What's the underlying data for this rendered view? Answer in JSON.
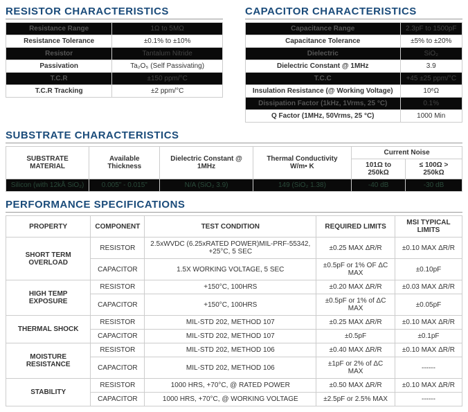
{
  "resistor": {
    "title": "RESISTOR CHARACTERISTICS",
    "rows": [
      {
        "label": "Resistance Range",
        "value": "1Ω to 5MΩ",
        "dark": true
      },
      {
        "label": "Resistance Tolerance",
        "value": "±0.1% to ±10%",
        "dark": false
      },
      {
        "label": "Resistor",
        "value": "Tantalum Nitride",
        "dark": true
      },
      {
        "label": "Passivation",
        "value": "Ta₂O₅ (Self Passivating)",
        "dark": false
      },
      {
        "label": "T.C.R",
        "value": "±150 ppm/°C",
        "dark": true
      },
      {
        "label": "T.C.R Tracking",
        "value": "±2 ppm/°C",
        "dark": false
      }
    ]
  },
  "capacitor": {
    "title": "CAPACITOR CHARACTERISTICS",
    "rows": [
      {
        "label": "Capacitance Range",
        "value": "2.3pF to 1500pF",
        "dark": true
      },
      {
        "label": "Capacitance Tolerance",
        "value": "±5% to ±20%",
        "dark": false
      },
      {
        "label": "Dielectric",
        "value": "SiO₂",
        "dark": true
      },
      {
        "label": "Dielectric Constant @ 1MHz",
        "value": "3.9",
        "dark": false
      },
      {
        "label": "T.C.C",
        "value": "+45 ±25 ppm/°C",
        "dark": true
      },
      {
        "label": "Insulation Resistance (@ Working Voltage)",
        "value": "10⁶Ω",
        "dark": false
      },
      {
        "label": "Dissipation Factor (1kHz, 1Vrms, 25 °C)",
        "value": "0.1%",
        "dark": true
      },
      {
        "label": "Q Factor (1MHz, 50Vrms, 25 °C)",
        "value": "1000 Min",
        "dark": false
      }
    ]
  },
  "substrate": {
    "title": "SUBSTRATE CHARACTERISTICS",
    "headers": {
      "material": "SUBSTRATE MATERIAL",
      "thickness": "Available Thickness",
      "dielectric": "Dielectric Constant @ 1MHz",
      "thermal": "Thermal Conductivity W/m• K",
      "noise": "Current Noise",
      "noise_a": "101Ω to 250kΩ",
      "noise_b": "≤ 100Ω >  250kΩ"
    },
    "data": {
      "material": "Silicon (with 12kÅ SiO₂)",
      "thickness": "0.005\" - 0.015\"",
      "dielectric": "N/A (SiO₂ 3.9)",
      "thermal": "149 (SiO₂ 1.38)",
      "noise_a": "-40 dB",
      "noise_b": "-30 dB"
    }
  },
  "performance": {
    "title": "PERFORMANCE SPECIFICATIONS",
    "headers": {
      "property": "PROPERTY",
      "component": "COMPONENT",
      "test": "TEST CONDITION",
      "required": "REQUIRED LIMITS",
      "typical": "MSI TYPICAL LIMITS"
    },
    "groups": [
      {
        "property": "SHORT TERM OVERLOAD",
        "rows": [
          {
            "component": "RESISTOR",
            "test": "2.5xWVDC (6.25xRATED POWER)MIL-PRF-55342, +25°C, 5 SEC",
            "required": "±0.25 MAX ΔR/R",
            "typical": "±0.10 MAX ΔR/R"
          },
          {
            "component": "CAPACITOR",
            "test": "1.5X WORKING VOLTAGE, 5 SEC",
            "required": "±0.5pF or 1% OF ΔC MAX",
            "typical": "±0.10pF"
          }
        ]
      },
      {
        "property": "HIGH TEMP EXPOSURE",
        "rows": [
          {
            "component": "RESISTOR",
            "test": "+150°C, 100HRS",
            "required": "±0.20 MAX ΔR/R",
            "typical": "±0.03 MAX ΔR/R"
          },
          {
            "component": "CAPACITOR",
            "test": "+150°C, 100HRS",
            "required": "±0.5pF or 1% of ΔC MAX",
            "typical": "±0.05pF"
          }
        ]
      },
      {
        "property": "THERMAL SHOCK",
        "rows": [
          {
            "component": "RESISTOR",
            "test": "MIL-STD 202, METHOD 107",
            "required": "±0.25 MAX ΔR/R",
            "typical": "±0.10 MAX ΔR/R"
          },
          {
            "component": "CAPACITOR",
            "test": "MIL-STD 202, METHOD 107",
            "required": "±0.5pF",
            "typical": "±0.1pF"
          }
        ]
      },
      {
        "property": "MOISTURE RESISTANCE",
        "rows": [
          {
            "component": "RESISTOR",
            "test": "MIL-STD 202, METHOD 106",
            "required": "±0.40 MAX ΔR/R",
            "typical": "±0.10 MAX ΔR/R"
          },
          {
            "component": "CAPACITOR",
            "test": "MIL-STD 202, METHOD 106",
            "required": "±1pF or 2% of ΔC MAX",
            "typical": "------"
          }
        ]
      },
      {
        "property": "STABILITY",
        "rows": [
          {
            "component": "RESISTOR",
            "test": "1000 HRS, +70°C, @ RATED POWER",
            "required": "±0.50 MAX ΔR/R",
            "typical": "±0.10 MAX ΔR/R"
          },
          {
            "component": "CAPACITOR",
            "test": "1000 HRS, +70°C, @ WORKING VOLTAGE",
            "required": "±2.5pF or 2.5% MAX",
            "typical": "------"
          }
        ]
      }
    ]
  }
}
